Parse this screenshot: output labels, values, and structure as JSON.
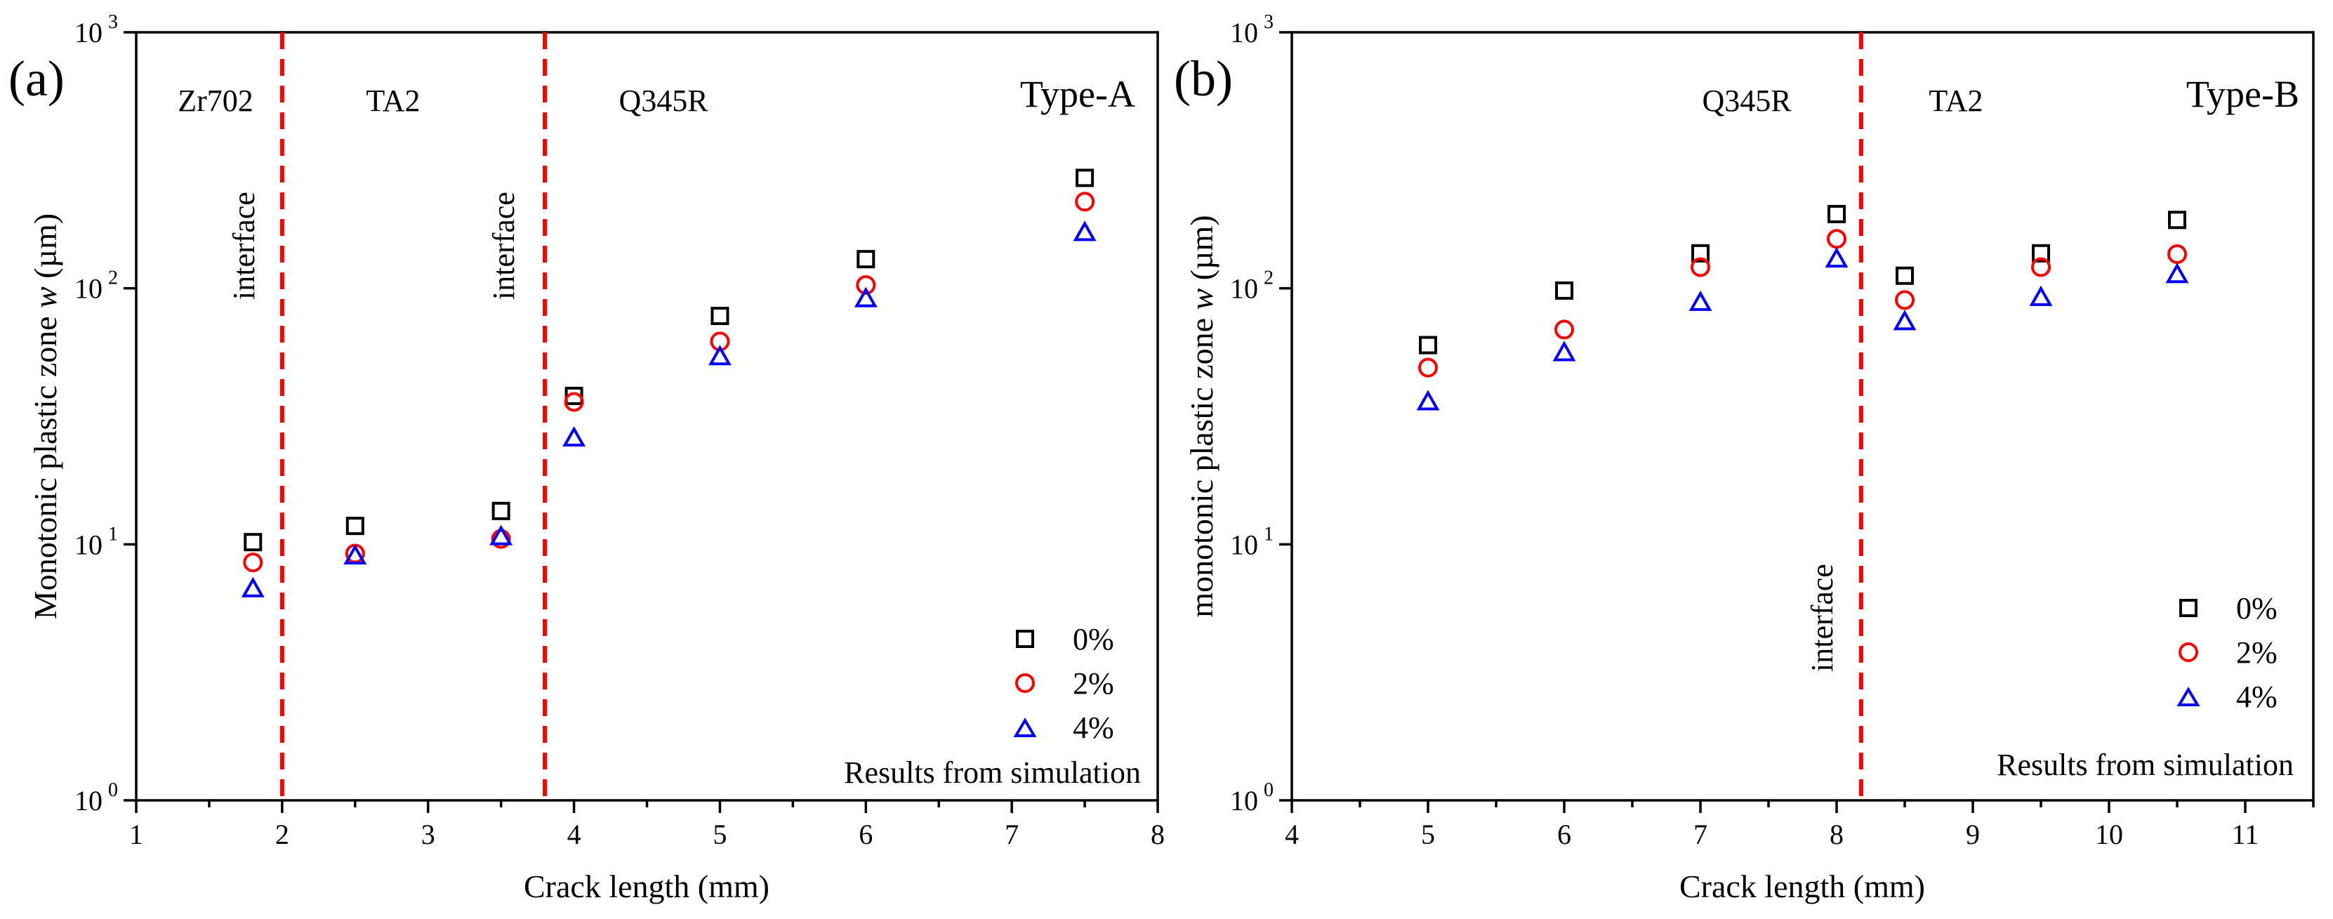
{
  "chart_data": [
    {
      "type": "scatter",
      "panel": "(a)",
      "title": "Type-A",
      "xlabel": "Crack length (mm)",
      "ylabel_text": "Monotonic plastic zone ",
      "ylabel_var": "w",
      "ylabel_unit": " (µm)",
      "xlim": [
        1,
        8
      ],
      "ylim": [
        1,
        1000
      ],
      "yscale": "log",
      "xticks": [
        1,
        2,
        3,
        4,
        5,
        6,
        7,
        8
      ],
      "xtick_labels": [
        "1",
        "2",
        "3",
        "4",
        "5",
        "6",
        "7",
        "8"
      ],
      "yticks": [
        1,
        10,
        100,
        1000
      ],
      "ytick_base": [
        "10",
        "10",
        "10",
        "10"
      ],
      "ytick_exp": [
        "0",
        "1",
        "2",
        "3"
      ],
      "legend_position": "lower-right",
      "series": [
        {
          "name": "0%",
          "marker": "square",
          "color": "#000000",
          "x": [
            1.8,
            2.5,
            3.5,
            4.0,
            5.0,
            6.0,
            7.5
          ],
          "y": [
            10.2,
            11.8,
            13.5,
            38,
            78,
            130,
            270
          ]
        },
        {
          "name": "2%",
          "marker": "circle",
          "color": "#ff0000",
          "x": [
            1.8,
            2.5,
            3.5,
            4.0,
            5.0,
            6.0,
            7.5
          ],
          "y": [
            8.5,
            9.2,
            10.5,
            36,
            62,
            103,
            218
          ]
        },
        {
          "name": "4%",
          "marker": "triangle",
          "color": "#0000ff",
          "x": [
            1.8,
            2.5,
            3.5,
            4.0,
            5.0,
            6.0,
            7.5
          ],
          "y": [
            6.7,
            9.0,
            10.7,
            26,
            54,
            91,
            165
          ]
        }
      ],
      "interfaces": [
        2.0,
        3.8
      ],
      "interface_color": "#ff0000",
      "interface_text": "interface",
      "regions": [
        "Zr702",
        "TA2",
        "Q345R"
      ],
      "note": "Results from simulation"
    },
    {
      "type": "scatter",
      "panel": "(b)",
      "title": "Type-B",
      "xlabel": "Crack length (mm)",
      "ylabel_text": "monotonic plastic zone ",
      "ylabel_var": "w",
      "ylabel_unit": " (µm)",
      "xlim": [
        4,
        11.5
      ],
      "ylim": [
        1,
        1000
      ],
      "yscale": "log",
      "xticks": [
        4,
        5,
        6,
        7,
        8,
        9,
        10,
        11
      ],
      "xtick_labels": [
        "4",
        "5",
        "6",
        "7",
        "8",
        "9",
        "10",
        "11"
      ],
      "yticks": [
        1,
        10,
        100,
        1000
      ],
      "ytick_base": [
        "10",
        "10",
        "10",
        "10"
      ],
      "ytick_exp": [
        "0",
        "1",
        "2",
        "3"
      ],
      "legend_position": "lower-right",
      "series": [
        {
          "name": "0%",
          "marker": "square",
          "color": "#000000",
          "x": [
            5,
            6,
            7,
            8,
            8.5,
            9.5,
            10.5
          ],
          "y": [
            60,
            98,
            137,
            195,
            112,
            137,
            185
          ]
        },
        {
          "name": "2%",
          "marker": "circle",
          "color": "#ff0000",
          "x": [
            5,
            6,
            7,
            8,
            8.5,
            9.5,
            10.5
          ],
          "y": [
            49,
            69,
            121,
            156,
            90,
            121,
            136
          ]
        },
        {
          "name": "4%",
          "marker": "triangle",
          "color": "#0000ff",
          "x": [
            5,
            6,
            7,
            8,
            8.5,
            9.5,
            10.5
          ],
          "y": [
            36,
            56,
            88,
            130,
            74,
            92,
            113
          ]
        }
      ],
      "interfaces": [
        8.18
      ],
      "interface_color": "#ff0000",
      "interface_text": "interface",
      "regions": [
        "Q345R",
        "TA2"
      ],
      "note": "Results from simulation"
    }
  ]
}
